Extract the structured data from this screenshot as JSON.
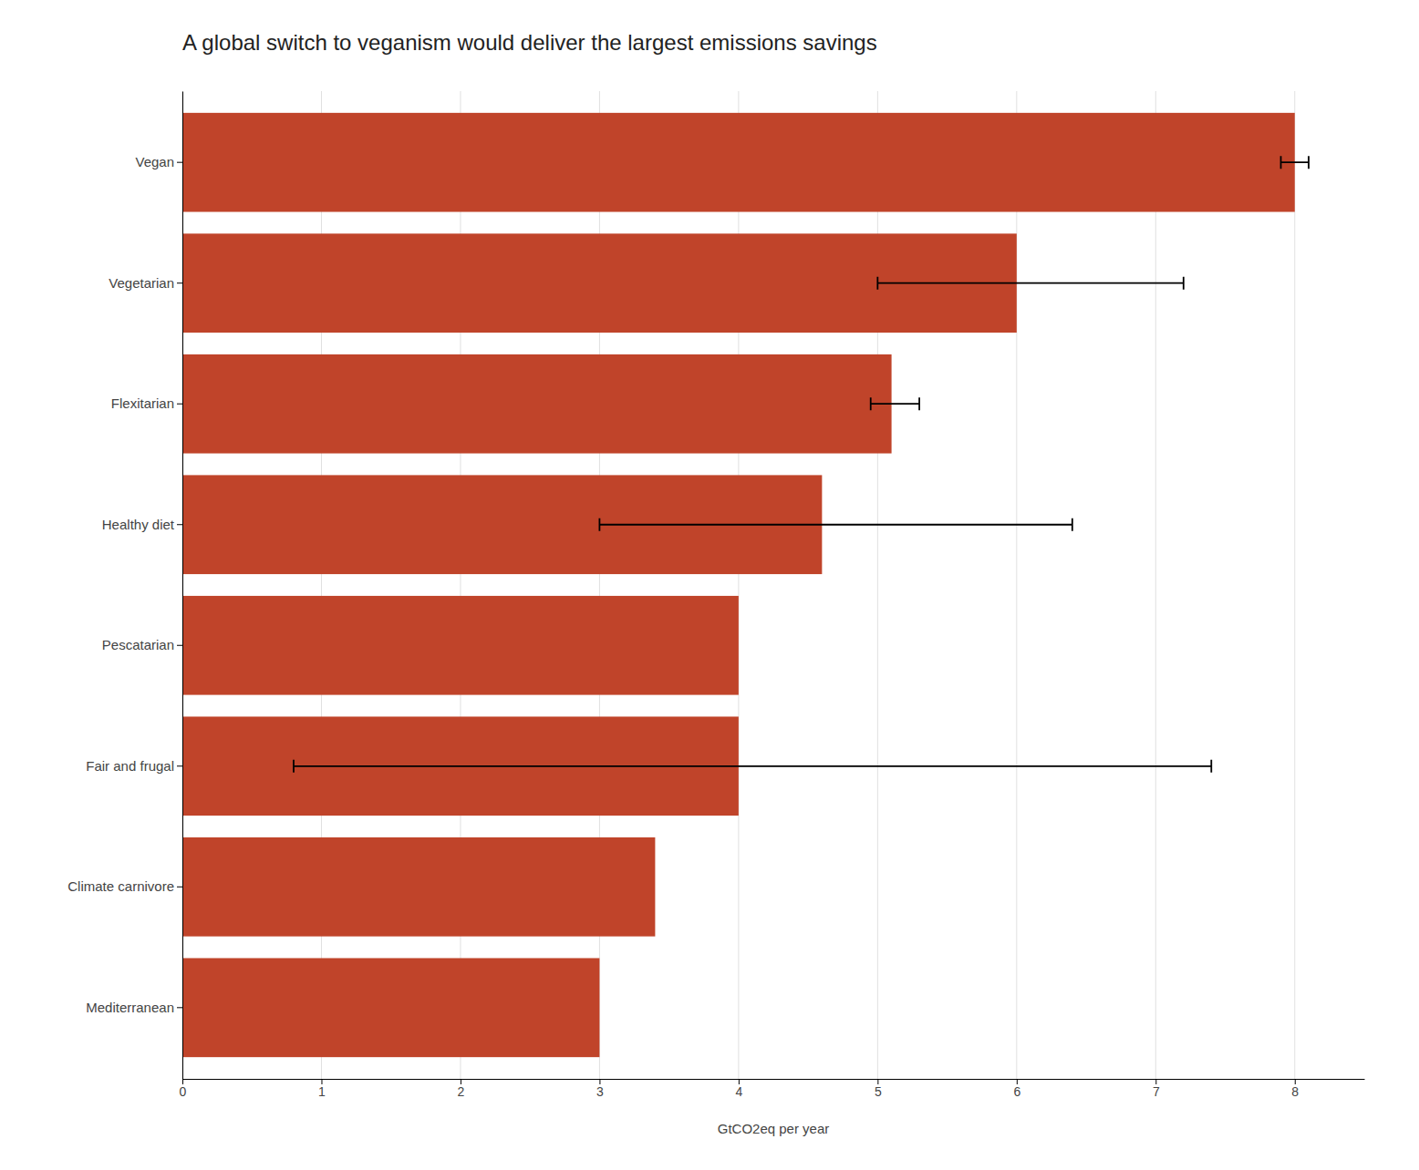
{
  "chart_data": {
    "type": "bar",
    "orientation": "horizontal",
    "title": "A global switch to veganism would deliver the largest emissions savings",
    "categories": [
      "Vegan",
      "Vegetarian",
      "Flexitarian",
      "Healthy diet",
      "Pescatarian",
      "Fair and frugal",
      "Climate carnivore",
      "Mediterranean"
    ],
    "values": [
      8.0,
      6.0,
      5.1,
      4.6,
      4.0,
      4.0,
      3.4,
      3.0
    ],
    "error_low": [
      7.9,
      5.0,
      4.95,
      3.0,
      null,
      0.8,
      null,
      null
    ],
    "error_high": [
      8.1,
      7.2,
      5.3,
      6.4,
      null,
      7.4,
      null,
      null
    ],
    "color": "#c0442a",
    "xlabel": "GtCO2eq per year",
    "xlim": [
      0,
      8.5
    ],
    "xticks": [
      0,
      1,
      2,
      3,
      4,
      5,
      6,
      7,
      8
    ],
    "grid": true
  }
}
